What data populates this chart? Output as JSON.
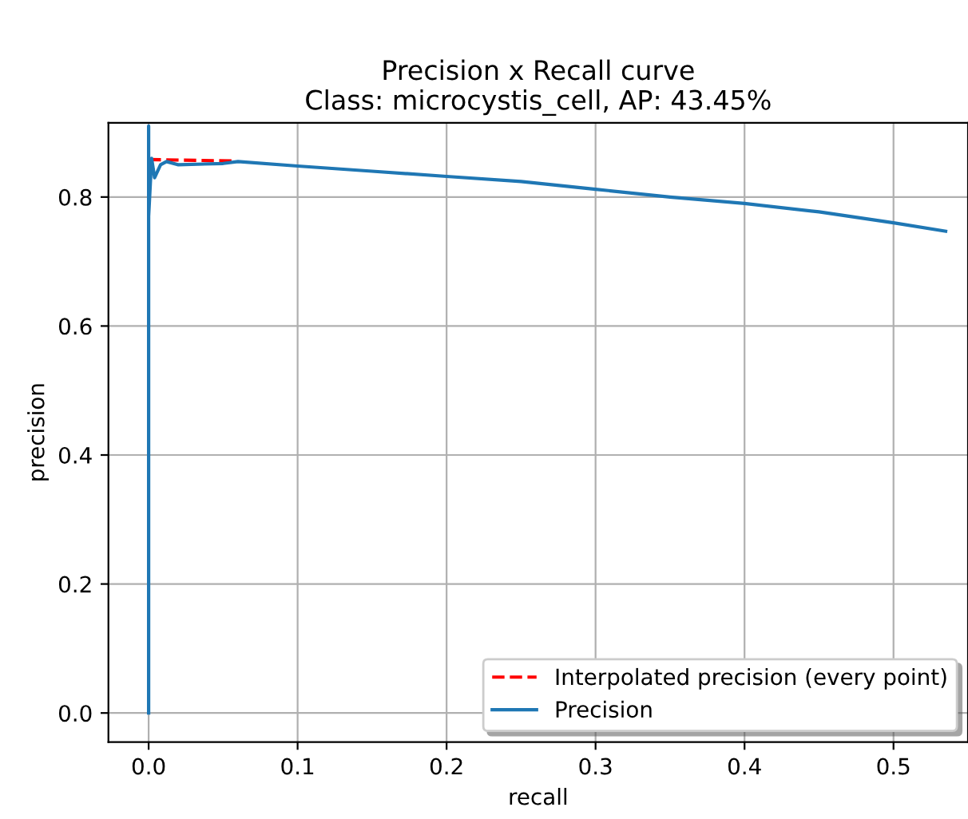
{
  "chart_data": {
    "type": "line",
    "title": "Precision x Recall curve\nClass: microcystis_cell, AP: 43.45%",
    "xlabel": "recall",
    "ylabel": "precision",
    "xlim": [
      -0.027,
      0.55
    ],
    "ylim": [
      -0.045,
      0.915
    ],
    "xticks": [
      {
        "value": 0,
        "label": "0.0"
      },
      0.1,
      0.2,
      0.3,
      0.4,
      0.5
    ],
    "yticks": [
      {
        "value": 0,
        "label": "0.0"
      },
      0.2,
      0.4,
      0.6,
      0.8
    ],
    "grid": true,
    "legend": "bottom right",
    "series": [
      {
        "name": "Interpolated precision (every point)",
        "color": "#ff0000",
        "line_style": "dashed",
        "x": [
          0,
          0.056
        ],
        "values": [
          0.858,
          0.856
        ]
      },
      {
        "name": "Precision",
        "color": "#1f77b4",
        "line_style": "solid",
        "x": [
          0,
          0,
          0,
          0.002,
          0.004,
          0.008,
          0.012,
          0.02,
          0.05,
          0.06,
          0.1,
          0.15,
          0.2,
          0.25,
          0.3,
          0.35,
          0.4,
          0.45,
          0.5,
          0.535
        ],
        "values": [
          0,
          0.91,
          0.77,
          0.86,
          0.83,
          0.85,
          0.855,
          0.85,
          0.852,
          0.855,
          0.848,
          0.84,
          0.832,
          0.824,
          0.812,
          0.8,
          0.79,
          0.777,
          0.76,
          0.747
        ]
      }
    ]
  }
}
